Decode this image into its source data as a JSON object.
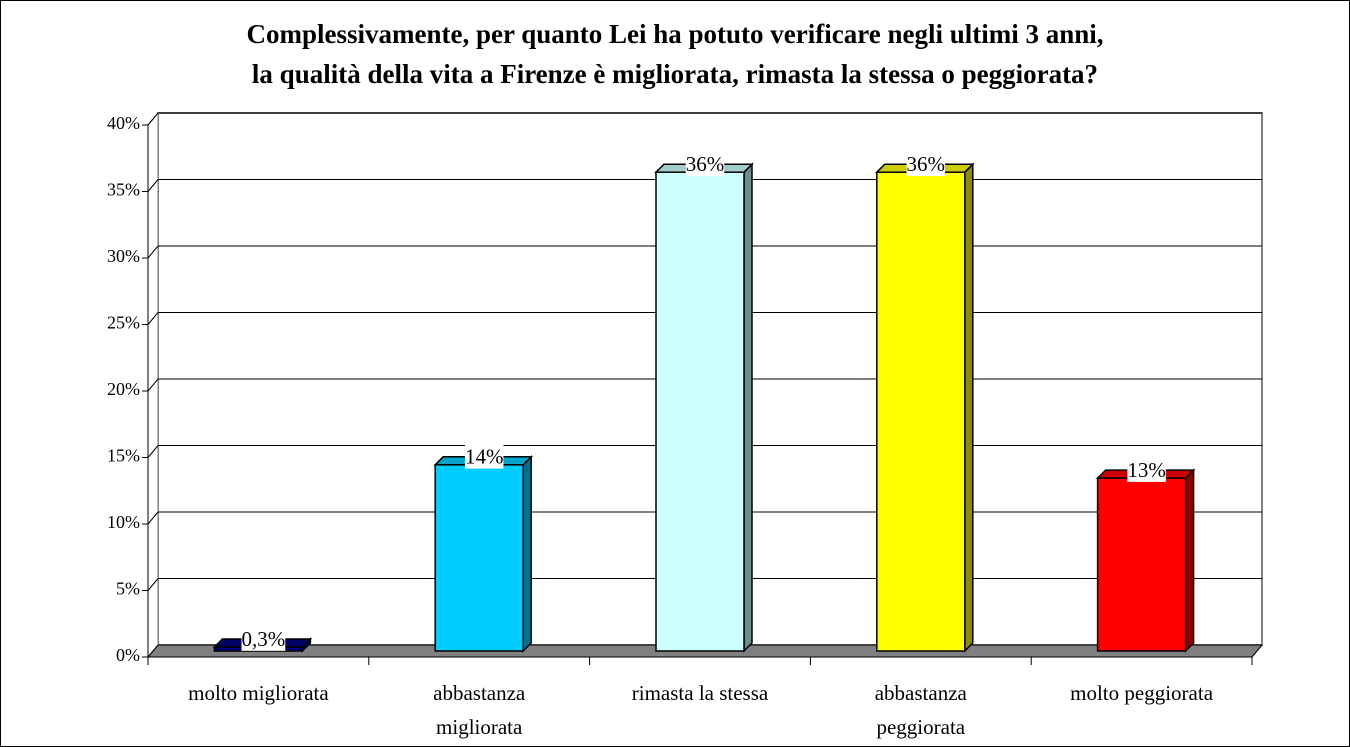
{
  "chart_data": {
    "type": "bar",
    "title": "Complessivamente, per quanto Lei ha potuto verificare negli ultimi 3 anni,\nla qualità della vita a Firenze è migliorata, rimasta la stessa o peggiorata?",
    "categories": [
      "molto migliorata",
      "abbastanza\nmigliorata",
      "rimasta la stessa",
      "abbastanza\npeggiorata",
      "molto peggiorata"
    ],
    "values": [
      0.3,
      14,
      36,
      36,
      13
    ],
    "value_labels": [
      "0,3%",
      "14%",
      "36%",
      "36%",
      "13%"
    ],
    "colors": [
      "#000080",
      "#00ccff",
      "#ccffff",
      "#ffff00",
      "#ff0000"
    ],
    "ylim": [
      0,
      40
    ],
    "yticks": [
      {
        "value": 0,
        "label": "0%"
      },
      {
        "value": 5,
        "label": "5%"
      },
      {
        "value": 10,
        "label": "10%"
      },
      {
        "value": 15,
        "label": "15%"
      },
      {
        "value": 20,
        "label": "20%"
      },
      {
        "value": 25,
        "label": "25%"
      },
      {
        "value": 30,
        "label": "30%"
      },
      {
        "value": 35,
        "label": "35%"
      },
      {
        "value": 40,
        "label": "40%"
      }
    ],
    "grid": true
  }
}
